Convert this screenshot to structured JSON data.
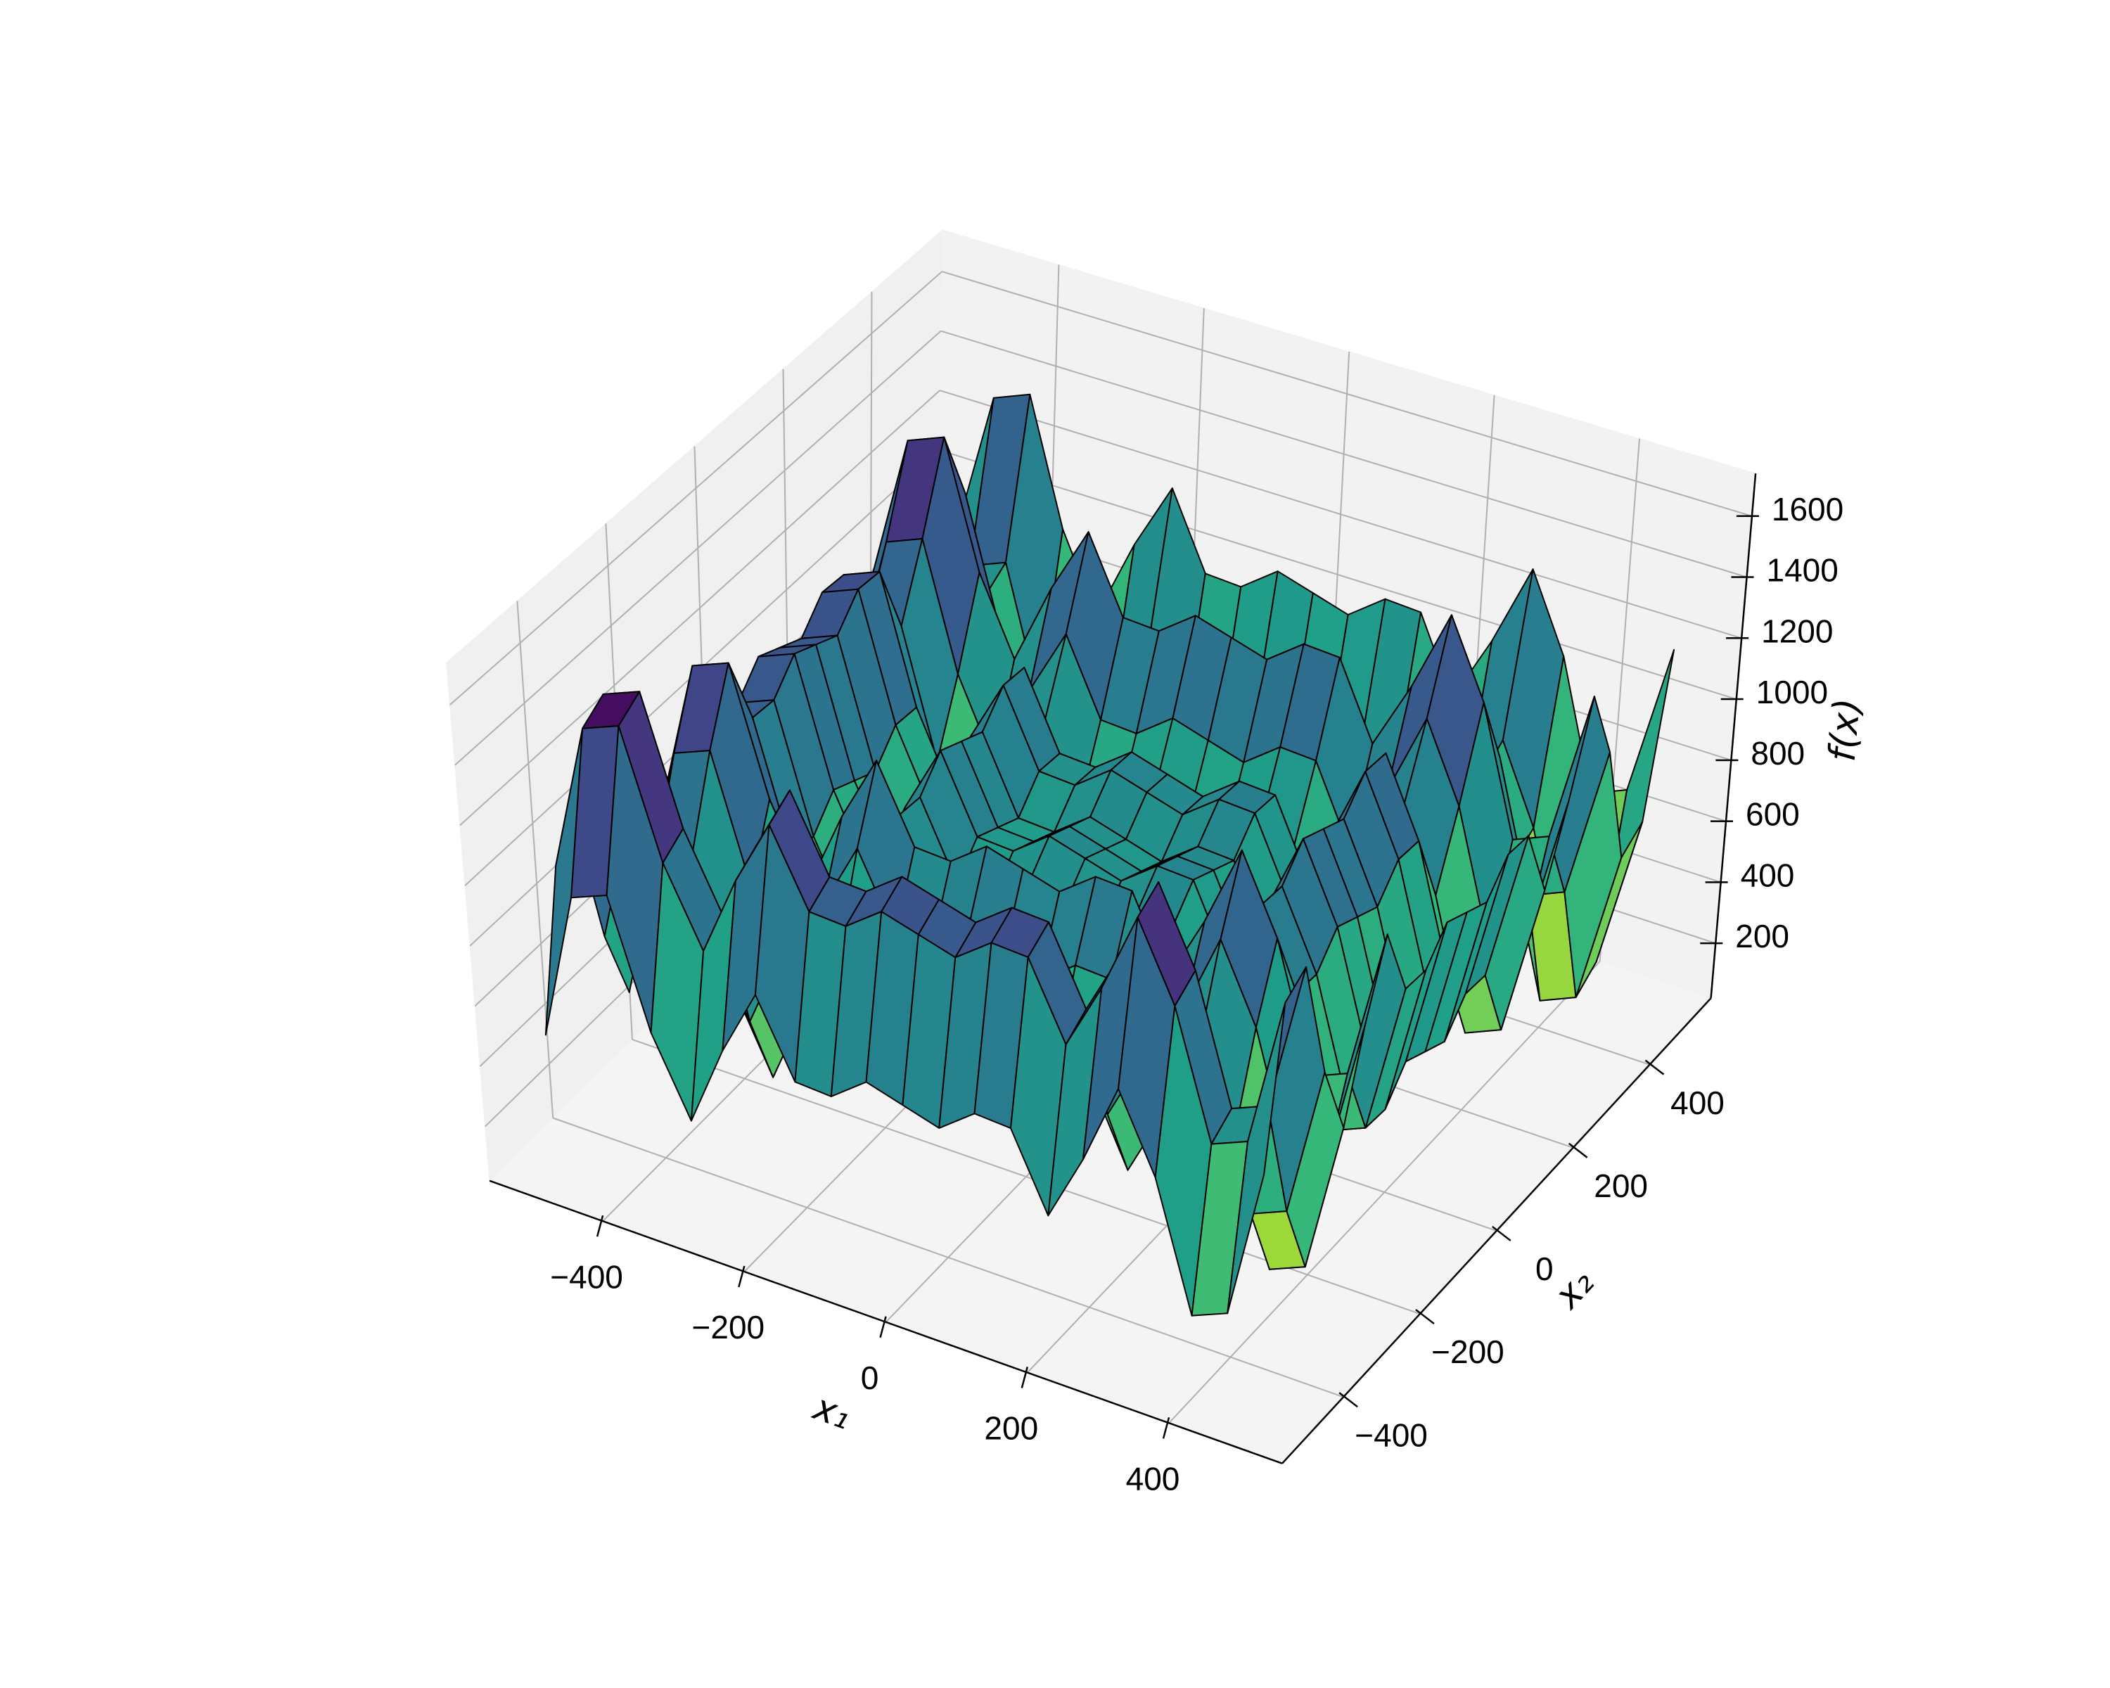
{
  "chart_data": {
    "type": "surface",
    "xlabel": "x₁",
    "ylabel": "x₂",
    "zlabel": "f(x)",
    "colormap": "viridis_r",
    "grid": true,
    "xlim": [
      -560,
      560
    ],
    "ylim": [
      -560,
      560
    ],
    "zlim": [
      20,
      1740
    ],
    "xticks": [
      {
        "value": -400,
        "label": "−400"
      },
      {
        "value": -200,
        "label": "−200"
      },
      0,
      200,
      400
    ],
    "yticks": [
      {
        "value": -400,
        "label": "−400"
      },
      {
        "value": -200,
        "label": "−200"
      },
      0,
      200,
      400
    ],
    "zticks": [
      200,
      400,
      600,
      800,
      1000,
      1200,
      1400,
      1600
    ],
    "x": [
      -500,
      -450,
      -400,
      -350,
      -300,
      -250,
      -200,
      -150,
      -100,
      -50,
      0,
      50,
      100,
      150,
      200,
      250,
      300,
      350,
      400,
      450,
      500
    ],
    "y": [
      -500,
      -450,
      -400,
      -350,
      -300,
      -250,
      -200,
      -150,
      -100,
      -50,
      0,
      50,
      100,
      150,
      200,
      250,
      300,
      350,
      400,
      450,
      500
    ],
    "z": [
      [
        476,
        973,
        1022,
        608,
        357,
        631,
        857,
        610,
        603,
        692,
        657,
        622,
        711,
        704,
        457,
        683,
        957,
        706,
        292,
        341,
        838
      ],
      [
        973,
        1470,
        1519,
        1105,
        854,
        1128,
        1354,
        1107,
        1100,
        1189,
        1154,
        1119,
        1208,
        1201,
        954,
        1180,
        1454,
        1203,
        789,
        838,
        1335
      ],
      [
        1022,
        1519,
        1568,
        1154,
        903,
        1177,
        1403,
        1156,
        1149,
        1238,
        1203,
        1168,
        1257,
        1250,
        1003,
        1229,
        1503,
        1252,
        838,
        887,
        1384
      ],
      [
        608,
        1105,
        1154,
        740,
        489,
        763,
        989,
        742,
        735,
        824,
        789,
        754,
        843,
        836,
        589,
        815,
        1089,
        838,
        424,
        473,
        970
      ],
      [
        357,
        854,
        903,
        489,
        238,
        512,
        738,
        491,
        484,
        573,
        538,
        503,
        592,
        585,
        338,
        564,
        838,
        587,
        173,
        222,
        719
      ],
      [
        631,
        1128,
        1177,
        763,
        512,
        786,
        1012,
        765,
        758,
        847,
        812,
        777,
        866,
        859,
        612,
        838,
        1112,
        861,
        447,
        496,
        993
      ],
      [
        857,
        1354,
        1403,
        989,
        738,
        1012,
        1238,
        991,
        984,
        1073,
        1038,
        1003,
        1092,
        1085,
        838,
        1064,
        1338,
        1087,
        673,
        722,
        1219
      ],
      [
        610,
        1107,
        1156,
        742,
        491,
        765,
        991,
        744,
        737,
        826,
        791,
        756,
        845,
        838,
        591,
        817,
        1091,
        840,
        426,
        475,
        972
      ],
      [
        603,
        1100,
        1149,
        735,
        484,
        758,
        984,
        737,
        730,
        819,
        784,
        749,
        838,
        831,
        584,
        810,
        1084,
        833,
        419,
        468,
        965
      ],
      [
        692,
        1189,
        1238,
        824,
        573,
        847,
        1073,
        826,
        819,
        908,
        873,
        838,
        927,
        920,
        673,
        899,
        1173,
        922,
        508,
        557,
        1054
      ],
      [
        657,
        1154,
        1203,
        789,
        538,
        812,
        1038,
        791,
        784,
        873,
        838,
        803,
        892,
        885,
        638,
        864,
        1138,
        887,
        473,
        522,
        1019
      ],
      [
        622,
        1119,
        1168,
        754,
        503,
        777,
        1003,
        756,
        749,
        838,
        803,
        768,
        857,
        850,
        603,
        829,
        1103,
        852,
        438,
        487,
        984
      ],
      [
        711,
        1208,
        1257,
        843,
        592,
        866,
        1092,
        845,
        838,
        927,
        892,
        857,
        946,
        939,
        692,
        918,
        1192,
        941,
        527,
        576,
        1073
      ],
      [
        704,
        1201,
        1250,
        836,
        585,
        859,
        1085,
        838,
        831,
        920,
        885,
        850,
        939,
        932,
        685,
        911,
        1185,
        934,
        520,
        569,
        1066
      ],
      [
        457,
        954,
        1003,
        589,
        338,
        612,
        838,
        591,
        584,
        673,
        638,
        603,
        692,
        685,
        438,
        664,
        938,
        687,
        273,
        322,
        819
      ],
      [
        683,
        1180,
        1229,
        815,
        564,
        838,
        1064,
        817,
        810,
        899,
        864,
        829,
        918,
        911,
        664,
        890,
        1164,
        913,
        499,
        548,
        1045
      ],
      [
        957,
        1454,
        1503,
        1089,
        838,
        1112,
        1338,
        1091,
        1084,
        1173,
        1138,
        1103,
        1192,
        1185,
        938,
        1164,
        1438,
        1187,
        773,
        822,
        1319
      ],
      [
        706,
        1203,
        1252,
        838,
        587,
        861,
        1087,
        840,
        833,
        922,
        887,
        852,
        941,
        934,
        687,
        913,
        1187,
        936,
        522,
        571,
        1068
      ],
      [
        292,
        789,
        838,
        424,
        173,
        447,
        673,
        426,
        419,
        508,
        473,
        438,
        527,
        520,
        273,
        499,
        773,
        522,
        108,
        157,
        654
      ],
      [
        341,
        838,
        887,
        473,
        222,
        496,
        722,
        475,
        468,
        557,
        522,
        487,
        576,
        569,
        322,
        548,
        822,
        571,
        157,
        206,
        703
      ],
      [
        838,
        1335,
        1384,
        970,
        719,
        993,
        1219,
        972,
        965,
        1054,
        1019,
        984,
        1073,
        1066,
        819,
        1045,
        1319,
        1068,
        654,
        703,
        1200
      ]
    ]
  }
}
